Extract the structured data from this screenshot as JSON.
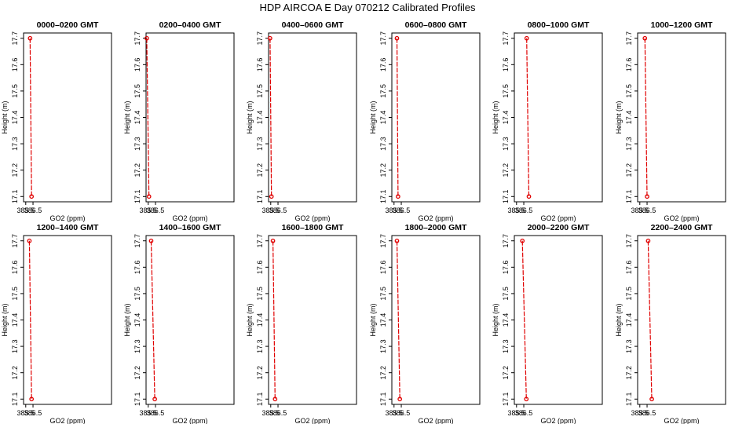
{
  "chart_data": {
    "type": "line",
    "title": "HDP AIRCOA E  Day 070212  Calibrated Profiles",
    "xlabel": "GO2 (ppm)",
    "ylabel": "Height (m)",
    "xlim": [
      385.2,
      397.3
    ],
    "ylim": [
      17.08,
      17.72
    ],
    "xticks": [
      385.5,
      386.5
    ],
    "xtick_labels": [
      "385.5",
      "386.5"
    ],
    "yticks": [
      17.1,
      17.2,
      17.3,
      17.4,
      17.5,
      17.6,
      17.7
    ],
    "ytick_labels": [
      "17.1",
      "17.2",
      "17.3",
      "17.4",
      "17.5",
      "17.6",
      "17.7"
    ],
    "panels": [
      {
        "title": "0000–0200 GMT",
        "x": [
          386.1,
          386.3
        ],
        "y": [
          17.7,
          17.1
        ]
      },
      {
        "title": "0200–0400 GMT",
        "x": [
          385.3,
          385.6
        ],
        "y": [
          17.7,
          17.1
        ]
      },
      {
        "title": "0400–0600 GMT",
        "x": [
          385.4,
          385.6
        ],
        "y": [
          17.7,
          17.1
        ]
      },
      {
        "title": "0600–0800 GMT",
        "x": [
          385.9,
          386.05
        ],
        "y": [
          17.7,
          17.1
        ]
      },
      {
        "title": "0800–1000 GMT",
        "x": [
          386.9,
          387.2
        ],
        "y": [
          17.7,
          17.1
        ]
      },
      {
        "title": "1000–1200 GMT",
        "x": [
          386.2,
          386.5
        ],
        "y": [
          17.7,
          17.1
        ]
      },
      {
        "title": "1200–1400 GMT",
        "x": [
          386.0,
          386.3
        ],
        "y": [
          17.7,
          17.1
        ]
      },
      {
        "title": "1400–1600 GMT",
        "x": [
          385.9,
          386.4
        ],
        "y": [
          17.7,
          17.1
        ]
      },
      {
        "title": "1600–1800 GMT",
        "x": [
          385.8,
          386.1
        ],
        "y": [
          17.7,
          17.1
        ]
      },
      {
        "title": "1800–2000 GMT",
        "x": [
          385.9,
          386.3
        ],
        "y": [
          17.7,
          17.1
        ]
      },
      {
        "title": "2000–2200 GMT",
        "x": [
          386.3,
          386.85
        ],
        "y": [
          17.7,
          17.1
        ]
      },
      {
        "title": "2200–2400 GMT",
        "x": [
          386.65,
          387.15
        ],
        "y": [
          17.7,
          17.1
        ]
      }
    ]
  }
}
